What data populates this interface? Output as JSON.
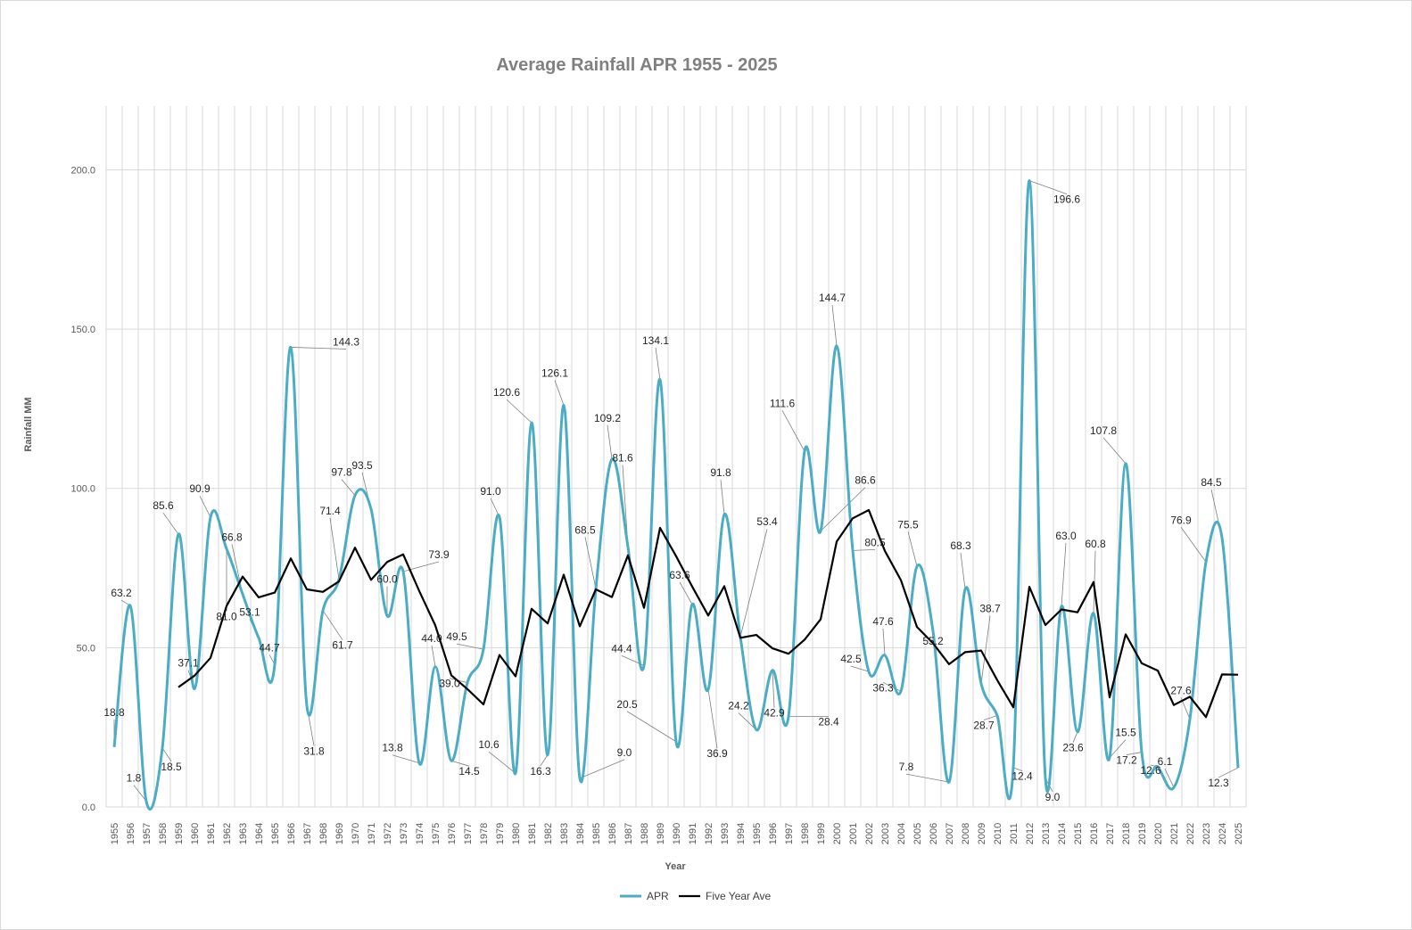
{
  "chart_data": {
    "type": "line",
    "title": "Average Rainfall APR 1955 - 2025",
    "xlabel": "Year",
    "ylabel": "Rainfall MM",
    "ylim": [
      0,
      220
    ],
    "yticks": [
      "0.0",
      "50.0",
      "100.0",
      "150.0",
      "200.0"
    ],
    "grid": true,
    "legend_position": "bottom",
    "x": [
      1955,
      1956,
      1957,
      1958,
      1959,
      1960,
      1961,
      1962,
      1963,
      1964,
      1965,
      1966,
      1967,
      1968,
      1969,
      1970,
      1971,
      1972,
      1973,
      1974,
      1975,
      1976,
      1977,
      1978,
      1979,
      1980,
      1981,
      1982,
      1983,
      1984,
      1985,
      1986,
      1987,
      1988,
      1989,
      1990,
      1991,
      1992,
      1993,
      1994,
      1995,
      1996,
      1997,
      1998,
      1999,
      2000,
      2001,
      2002,
      2003,
      2004,
      2005,
      2006,
      2007,
      2008,
      2009,
      2010,
      2011,
      2012,
      2013,
      2014,
      2015,
      2016,
      2017,
      2018,
      2019,
      2020,
      2021,
      2022,
      2023,
      2024,
      2025
    ],
    "series": [
      {
        "name": "APR",
        "color": "#4bacc6",
        "values": [
          18.8,
          63.2,
          1.8,
          18.5,
          85.6,
          37.1,
          90.9,
          81.0,
          66.8,
          53.1,
          44.7,
          144.3,
          31.8,
          61.7,
          71.4,
          97.8,
          93.5,
          60.0,
          73.9,
          13.8,
          44.0,
          14.5,
          39.0,
          49.5,
          91.0,
          10.6,
          120.6,
          16.3,
          126.1,
          9.0,
          68.5,
          109.2,
          81.6,
          44.4,
          134.1,
          20.5,
          63.6,
          36.9,
          91.8,
          53.4,
          24.2,
          42.9,
          28.4,
          111.6,
          86.6,
          144.7,
          80.5,
          42.5,
          47.6,
          36.3,
          75.5,
          55.2,
          7.8,
          68.3,
          38.7,
          28.7,
          12.4,
          196.6,
          9.0,
          63.0,
          23.6,
          60.8,
          15.5,
          107.8,
          17.2,
          12.6,
          6.1,
          27.6,
          76.9,
          84.5,
          12.3
        ],
        "labels": [
          "18.8",
          "63.2",
          "1.8",
          "18.5",
          "85.6",
          "37.1",
          "90.9",
          "81.0",
          "66.8",
          "53.1",
          "44.7",
          "144.3",
          "31.8",
          "61.7",
          "71.4",
          "97.8",
          "93.5",
          "60.0",
          "73.9",
          "13.8",
          "44.0",
          "14.5",
          "39.0",
          "49.5",
          "91.0",
          "10.6",
          "120.6",
          "16.3",
          "126.1",
          "9.0",
          "68.5",
          "109.2",
          "81.6",
          "44.4",
          "134.1",
          "20.5",
          "63.6",
          "36.9",
          "91.8",
          "53.4",
          "24.2",
          "42.9",
          "28.4",
          "111.6",
          "86.6",
          "144.7",
          "80.5",
          "42.5",
          "47.6",
          "36.3",
          "75.5",
          "55.2",
          "7.8",
          "68.3",
          "38.7",
          "28.7",
          "12.4",
          "196.6",
          "9.0",
          "63.0",
          "23.6",
          "60.8",
          "15.5",
          "107.8",
          "17.2",
          "12.6",
          "6.1",
          "27.6",
          "76.9",
          "84.5",
          "12.3"
        ]
      },
      {
        "name": "Five Year Ave",
        "color": "#000000",
        "values": [
          null,
          null,
          null,
          null,
          37.6,
          41.2,
          46.8,
          63.1,
          72.3,
          65.8,
          67.3,
          78.0,
          68.3,
          67.5,
          70.8,
          81.4,
          71.3,
          76.9,
          79.3,
          67.8,
          57.0,
          41.3,
          37.0,
          32.2,
          47.7,
          41.0,
          62.2,
          57.6,
          72.9,
          56.7,
          68.3,
          65.9,
          79.0,
          62.5,
          87.6,
          78.7,
          69.2,
          60.1,
          69.3,
          53.1,
          54.0,
          49.8,
          48.1,
          52.5,
          58.9,
          83.3,
          90.6,
          93.2,
          80.4,
          71.2,
          56.5,
          51.4,
          44.8,
          48.6,
          49.1,
          39.8,
          31.3,
          69.1,
          57.1,
          62.0,
          61.1,
          70.6,
          34.4,
          54.2,
          45.1,
          42.8,
          32.0,
          34.6,
          28.2,
          41.6,
          41.5
        ]
      }
    ],
    "label_offsets": [
      [
        0,
        -35
      ],
      [
        -10,
        -10
      ],
      [
        -14,
        -22
      ],
      [
        10,
        25
      ],
      [
        -17,
        -28
      ],
      [
        -7,
        -25
      ],
      [
        -12,
        -28
      ],
      [
        0,
        80
      ],
      [
        -12,
        -60
      ],
      [
        -10,
        -25
      ],
      [
        -6,
        -15
      ],
      [
        62,
        -2
      ],
      [
        8,
        55
      ],
      [
        22,
        43
      ],
      [
        -10,
        -73
      ],
      [
        -15,
        -22
      ],
      [
        -10,
        -45
      ],
      [
        0,
        -37
      ],
      [
        40,
        -15
      ],
      [
        -30,
        -13
      ],
      [
        -4,
        -28
      ],
      [
        20,
        16
      ],
      [
        -20,
        5
      ],
      [
        -30,
        -10
      ],
      [
        -10,
        -25
      ],
      [
        -30,
        -28
      ],
      [
        -28,
        -30
      ],
      [
        -8,
        22
      ],
      [
        -10,
        -32
      ],
      [
        50,
        -25
      ],
      [
        -12,
        -62
      ],
      [
        -5,
        -42
      ],
      [
        -6,
        -96
      ],
      [
        -25,
        -15
      ],
      [
        -5,
        -40
      ],
      [
        -55,
        -38
      ],
      [
        -14,
        -29
      ],
      [
        10,
        76
      ],
      [
        -4,
        -43
      ],
      [
        30,
        -125
      ],
      [
        -20,
        -23
      ],
      [
        2,
        52
      ],
      [
        45,
        10
      ],
      [
        -25,
        -50
      ],
      [
        50,
        -53
      ],
      [
        -5,
        -50
      ],
      [
        25,
        -5
      ],
      [
        -20,
        -10
      ],
      [
        -2,
        -34
      ],
      [
        -20,
        0
      ],
      [
        -10,
        -43
      ],
      [
        0,
        15
      ],
      [
        -48,
        -13
      ],
      [
        -5,
        -45
      ],
      [
        10,
        -80
      ],
      [
        -15,
        15
      ],
      [
        10,
        14
      ],
      [
        42,
        25
      ],
      [
        8,
        25
      ],
      [
        5,
        -75
      ],
      [
        -5,
        22
      ],
      [
        2,
        -74
      ],
      [
        18,
        -24
      ],
      [
        -25,
        -33
      ],
      [
        -17,
        13
      ],
      [
        -8,
        8
      ],
      [
        -10,
        -25
      ],
      [
        -10,
        -28
      ],
      [
        -28,
        -43
      ],
      [
        -12,
        -58
      ],
      [
        -22,
        21
      ]
    ]
  }
}
